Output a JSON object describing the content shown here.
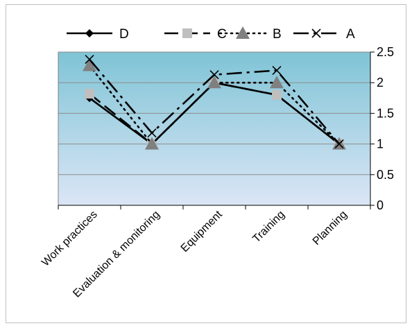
{
  "chart_data": {
    "type": "line",
    "categories": [
      "Work practices",
      "Evaluation & monitoring",
      "Equipment",
      "Training",
      "Planning"
    ],
    "y_ticks": [
      "0",
      "0.5",
      "1",
      "1.5",
      "2",
      "2.5"
    ],
    "ylim": [
      0,
      2.5
    ],
    "y_axis_side": "right",
    "grid": true,
    "legend_placement": "top",
    "background_gradient": [
      "#7fc4d6",
      "#dbe6f6"
    ],
    "series": [
      {
        "name": "D",
        "values": [
          1.75,
          1.0,
          2.0,
          1.8,
          1.0
        ],
        "color": "#000000",
        "marker": "diamond",
        "dash": "solid"
      },
      {
        "name": "C",
        "values": [
          1.82,
          1.0,
          2.0,
          1.8,
          1.0
        ],
        "color": "#000000",
        "marker": "square",
        "marker_color": "#bfbfbf",
        "dash": "long-dash"
      },
      {
        "name": "B",
        "values": [
          2.28,
          1.0,
          2.0,
          2.0,
          1.0
        ],
        "color": "#000000",
        "marker": "triangle",
        "marker_color": "#808080",
        "dash": "dotted"
      },
      {
        "name": "A",
        "values": [
          2.38,
          1.18,
          2.13,
          2.2,
          1.0
        ],
        "color": "#000000",
        "marker": "x",
        "dash": "dash-dot"
      }
    ]
  }
}
